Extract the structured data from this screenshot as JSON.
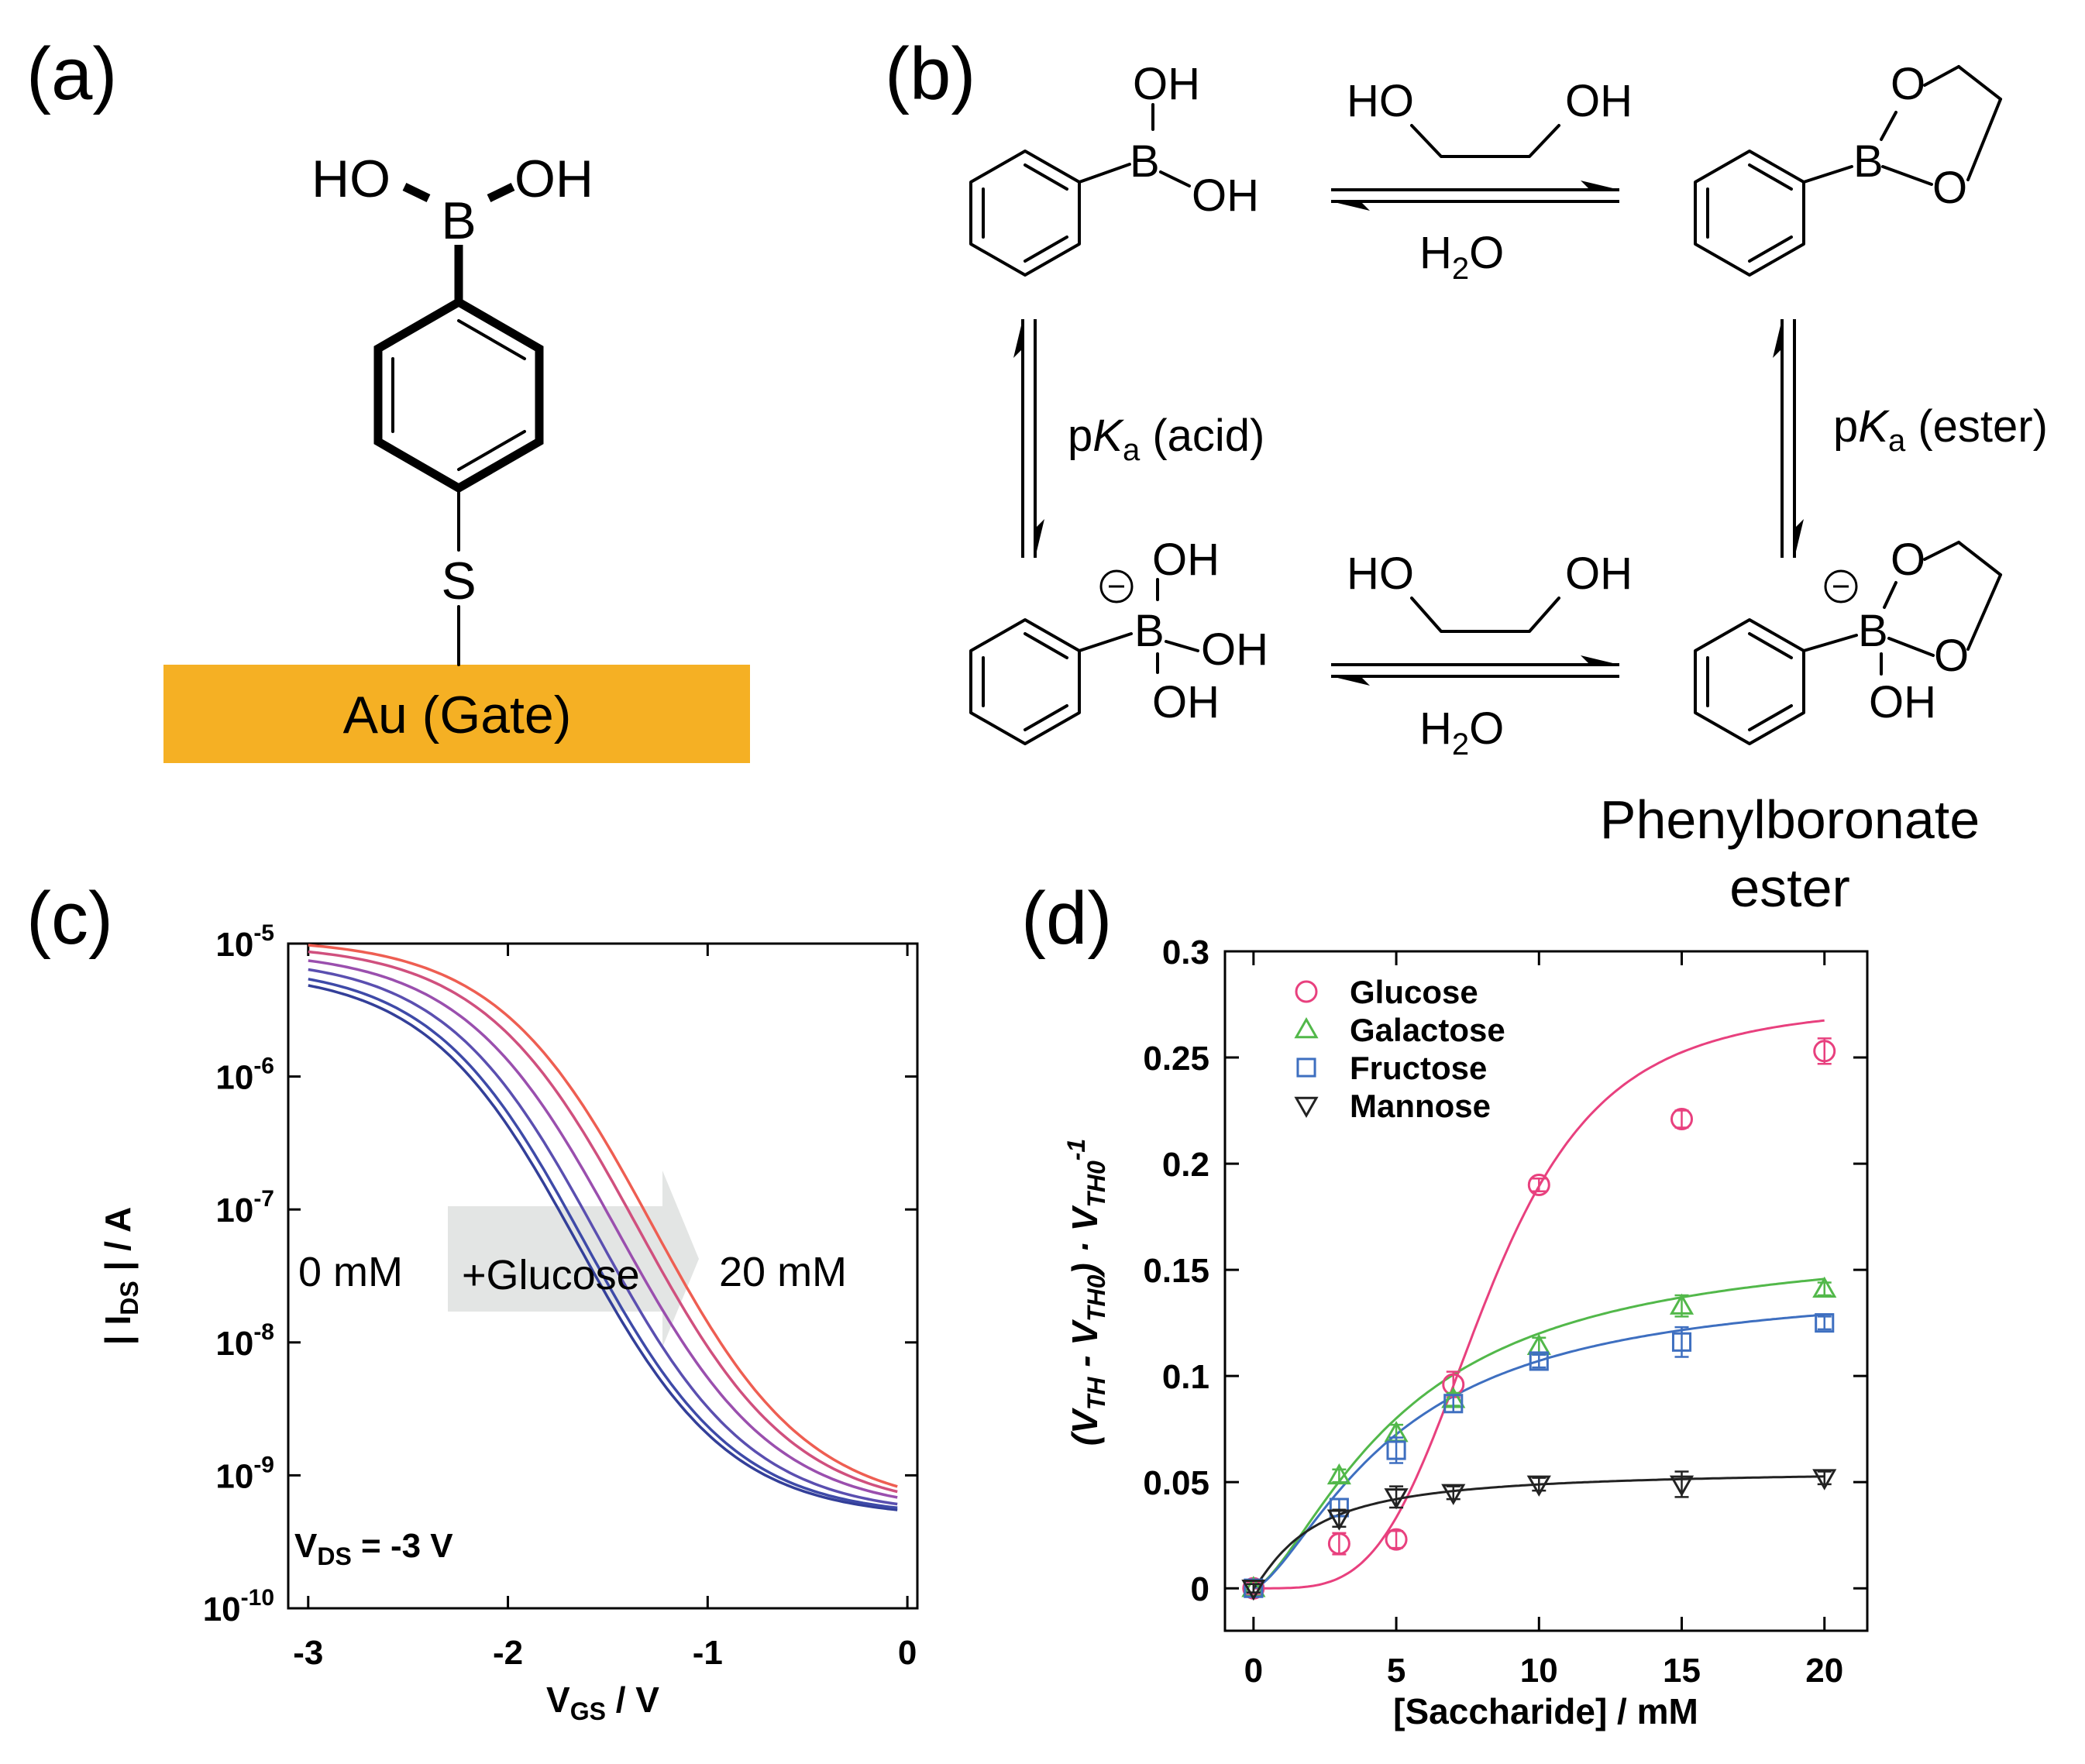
{
  "figure": {
    "panels": {
      "a": {
        "label": "(a)",
        "gate_text": "Au (Gate)",
        "gate_color": "#F5B024",
        "atoms": {
          "ho": "HO",
          "oh": "OH",
          "b": "B",
          "s": "S"
        }
      },
      "b": {
        "label": "(b)",
        "diol": {
          "ho": "HO",
          "oh": "OH"
        },
        "water": {
          "h": "H",
          "sub": "2",
          "o": "O"
        },
        "oh": "OH",
        "b": "B",
        "o": "O",
        "minus": "−",
        "pka_acid": {
          "p": "p",
          "k": "K",
          "sub": "a",
          "rest": " (acid)"
        },
        "pka_ester": {
          "p": "p",
          "k": "K",
          "sub": "a",
          "rest": " (ester)"
        },
        "product_line1": "Phenylboronate",
        "product_line2": "ester"
      },
      "c": {
        "label": "(c)"
      },
      "d": {
        "label": "(d)"
      }
    }
  },
  "chart_data": [
    {
      "panel": "c",
      "type": "line",
      "xlabel_main": "V",
      "xlabel_sub": "GS",
      "xlabel_rest": " / V",
      "ylabel_pre": "| I",
      "ylabel_sub": "DS",
      "ylabel_rest": " | / A",
      "xlim": [
        -3.1,
        0.05
      ],
      "ylim_log10": [
        -10,
        -5
      ],
      "y_scale": "log",
      "xticks": [
        -3,
        -2,
        -1,
        0
      ],
      "xtick_labels": [
        "-3",
        "-2",
        "-1",
        "0"
      ],
      "ytick_exponents": [
        -5,
        -6,
        -7,
        -8,
        -9,
        -10
      ],
      "ytick_base": "10",
      "annotations": {
        "start": "0 mM",
        "arrow": "+Glucose",
        "end": "20 mM",
        "vds_main": "V",
        "vds_sub": "DS",
        "vds_rest": " = -3 V"
      },
      "arrow_color": "#E3E5E4",
      "curve_model": "log10(I) = bottom + (top - bottom) / (1 + exp((x - x0) / w))",
      "series": [
        {
          "color": "#333F99",
          "bottom": -9.32,
          "top": -5.2,
          "x0": -1.65,
          "w": 0.38
        },
        {
          "color": "#3E4AA8",
          "bottom": -9.31,
          "top": -5.16,
          "x0": -1.62,
          "w": 0.38
        },
        {
          "color": "#5A4FB0",
          "bottom": -9.3,
          "top": -5.1,
          "x0": -1.55,
          "w": 0.385
        },
        {
          "color": "#9A4FAE",
          "bottom": -9.28,
          "top": -5.05,
          "x0": -1.45,
          "w": 0.39
        },
        {
          "color": "#D0507E",
          "bottom": -9.27,
          "top": -5.0,
          "x0": -1.35,
          "w": 0.39
        },
        {
          "color": "#EE5E52",
          "bottom": -9.26,
          "top": -4.96,
          "x0": -1.28,
          "w": 0.39
        }
      ]
    },
    {
      "panel": "d",
      "type": "scatter",
      "xlabel": "[Saccharide] / mM",
      "ylabel": {
        "open": "(V",
        "th": "TH",
        "minus": " - V",
        "th0": "TH0",
        "mid": ") · V",
        "th0b": "TH0",
        "exp": "-1"
      },
      "xlim": [
        -1,
        21.5
      ],
      "ylim": [
        -0.02,
        0.3
      ],
      "xticks": [
        0,
        5,
        10,
        15,
        20
      ],
      "xtick_labels": [
        "0",
        "5",
        "10",
        "15",
        "20"
      ],
      "yticks": [
        0,
        0.05,
        0.1,
        0.15,
        0.2,
        0.25,
        0.3
      ],
      "ytick_labels": [
        "0",
        "0.05",
        "0.1",
        "0.15",
        "0.2",
        "0.25",
        "0.3"
      ],
      "legend_position": "top-left",
      "series": [
        {
          "name": "Glucose",
          "marker": "circle",
          "color": "#E8407E",
          "x": [
            0,
            3,
            5,
            7,
            10,
            15,
            20
          ],
          "y": [
            0,
            0.021,
            0.023,
            0.096,
            0.19,
            0.221,
            0.253
          ],
          "err": [
            0.003,
            0.005,
            0.004,
            0.006,
            0.003,
            0.004,
            0.006
          ],
          "fit": {
            "model": "hill",
            "vmax": 0.275,
            "k": 8.2,
            "n": 4.0
          }
        },
        {
          "name": "Galactose",
          "marker": "triangle-up",
          "color": "#52B84A",
          "x": [
            0,
            3,
            5,
            7,
            10,
            15,
            20
          ],
          "y": [
            0,
            0.053,
            0.073,
            0.089,
            0.114,
            0.133,
            0.141
          ],
          "err": [
            0.002,
            0.003,
            0.004,
            0.003,
            0.004,
            0.005,
            0.003
          ],
          "fit": {
            "model": "hill",
            "vmax": 0.165,
            "k": 5.2,
            "n": 1.5
          }
        },
        {
          "name": "Fructose",
          "marker": "square",
          "color": "#3E6FC0",
          "x": [
            0,
            3,
            5,
            7,
            10,
            15,
            20
          ],
          "y": [
            0,
            0.038,
            0.065,
            0.087,
            0.107,
            0.116,
            0.125
          ],
          "err": [
            0.002,
            0.004,
            0.006,
            0.004,
            0.003,
            0.007,
            0.003
          ],
          "fit": {
            "model": "hill",
            "vmax": 0.145,
            "k": 5.0,
            "n": 1.5
          }
        },
        {
          "name": "Mannose",
          "marker": "triangle-down",
          "color": "#222222",
          "x": [
            0,
            3,
            5,
            7,
            10,
            15,
            20
          ],
          "y": [
            0,
            0.033,
            0.043,
            0.045,
            0.049,
            0.049,
            0.052
          ],
          "err": [
            0.002,
            0.004,
            0.005,
            0.003,
            0.003,
            0.006,
            0.003
          ],
          "fit": {
            "model": "hill",
            "vmax": 0.056,
            "k": 2.0,
            "n": 1.2
          }
        }
      ]
    }
  ]
}
